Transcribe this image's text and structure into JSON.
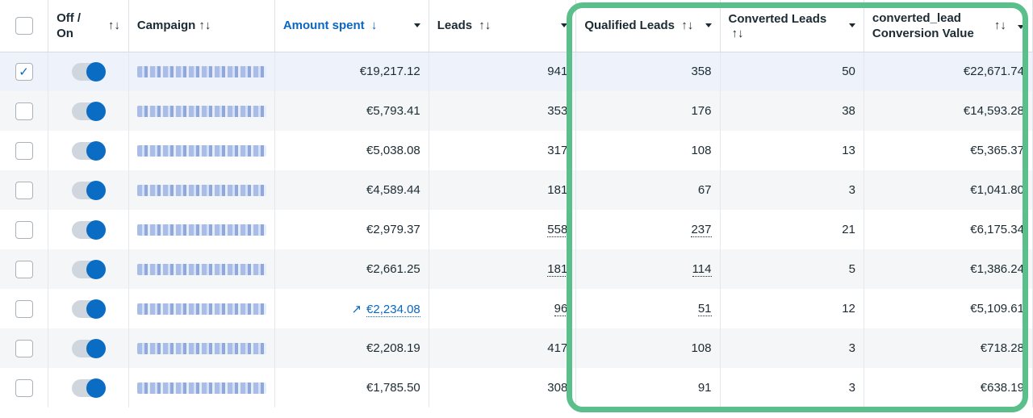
{
  "columns": {
    "offon": "Off / On",
    "campaign": "Campaign",
    "amount": "Amount spent",
    "leads": "Leads",
    "qualified": "Qualified Leads",
    "converted": "Converted Leads",
    "value": "converted_lead Conversion Value"
  },
  "icons": {
    "sort": "↑↓",
    "sort_desc": "↓",
    "check": "✓",
    "trend": "↗"
  },
  "colors": {
    "accent": "#0a66c2",
    "highlight_border": "#5bbf8c",
    "toggle_on": "#0a6cc2"
  },
  "rows": [
    {
      "selected": true,
      "amount": "€19,217.12",
      "leads": "941",
      "qualified": "358",
      "converted": "50",
      "value": "€22,671.74"
    },
    {
      "selected": false,
      "amount": "€5,793.41",
      "leads": "353",
      "qualified": "176",
      "converted": "38",
      "value": "€14,593.28"
    },
    {
      "selected": false,
      "amount": "€5,038.08",
      "leads": "317",
      "qualified": "108",
      "converted": "13",
      "value": "€5,365.37"
    },
    {
      "selected": false,
      "amount": "€4,589.44",
      "leads": "181",
      "qualified": "67",
      "converted": "3",
      "value": "€1,041.80"
    },
    {
      "selected": false,
      "amount": "€2,979.37",
      "leads": "558",
      "qualified": "237",
      "converted": "21",
      "value": "€6,175.34"
    },
    {
      "selected": false,
      "amount": "€2,661.25",
      "leads": "181",
      "qualified": "114",
      "converted": "5",
      "value": "€1,386.24"
    },
    {
      "selected": false,
      "amount": "€2,234.08",
      "leads": "96",
      "qualified": "51",
      "converted": "12",
      "value": "€5,109.61"
    },
    {
      "selected": false,
      "amount": "€2,208.19",
      "leads": "417",
      "qualified": "108",
      "converted": "3",
      "value": "€718.28"
    },
    {
      "selected": false,
      "amount": "€1,785.50",
      "leads": "308",
      "qualified": "91",
      "converted": "3",
      "value": "€638.19"
    }
  ]
}
